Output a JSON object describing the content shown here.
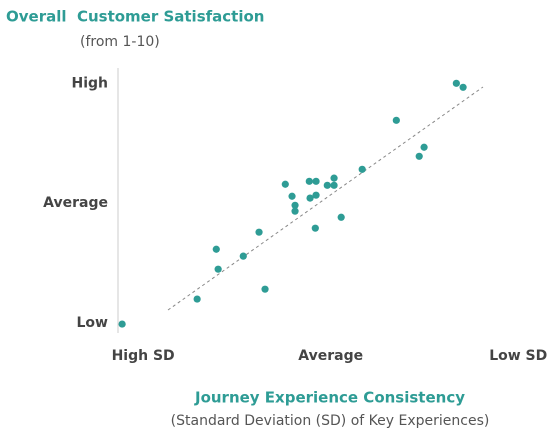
{
  "chart_data": {
    "type": "scatter",
    "ylabel": "Overall  Customer Satisfaction",
    "ylabel_sub": "(from 1-10)",
    "xlabel": "Journey Experience Consistency",
    "xlabel_sub": "(Standard Deviation (SD) of Key Experiences)",
    "color": "#2e9c95",
    "xlim": [
      -0.67,
      10.5
    ],
    "ylim": [
      0.7,
      10.5
    ],
    "xticks": [
      {
        "value": 0,
        "label": "High SD"
      },
      {
        "value": 5,
        "label": "Average"
      },
      {
        "value": 10,
        "label": "Low SD"
      }
    ],
    "yticks": [
      {
        "value": 1,
        "label": "Low"
      },
      {
        "value": 5.5,
        "label": "Average"
      },
      {
        "value": 10,
        "label": "High"
      }
    ],
    "x": [
      -0.56,
      1.44,
      1.95,
      2.0,
      2.67,
      3.09,
      3.25,
      3.79,
      3.97,
      4.05,
      4.05,
      4.43,
      4.61,
      4.45,
      4.61,
      4.59,
      4.91,
      5.09,
      5.09,
      5.28,
      5.84,
      6.75,
      7.36,
      7.49,
      8.35,
      8.53
    ],
    "y": [
      0.96,
      1.9,
      3.77,
      3.02,
      3.51,
      4.41,
      2.27,
      6.21,
      5.76,
      5.42,
      5.2,
      6.32,
      6.32,
      5.69,
      5.8,
      4.56,
      6.17,
      6.44,
      6.17,
      4.97,
      6.77,
      8.61,
      7.26,
      7.6,
      10.0,
      9.85
    ]
  }
}
